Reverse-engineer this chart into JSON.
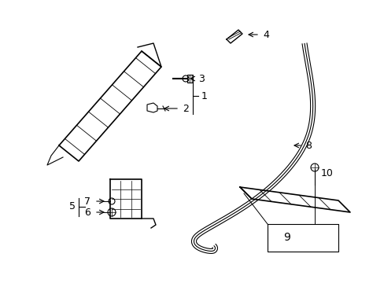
{
  "background_color": "#ffffff",
  "figure_width": 4.89,
  "figure_height": 3.6,
  "dpi": 100,
  "line_color": "#000000"
}
